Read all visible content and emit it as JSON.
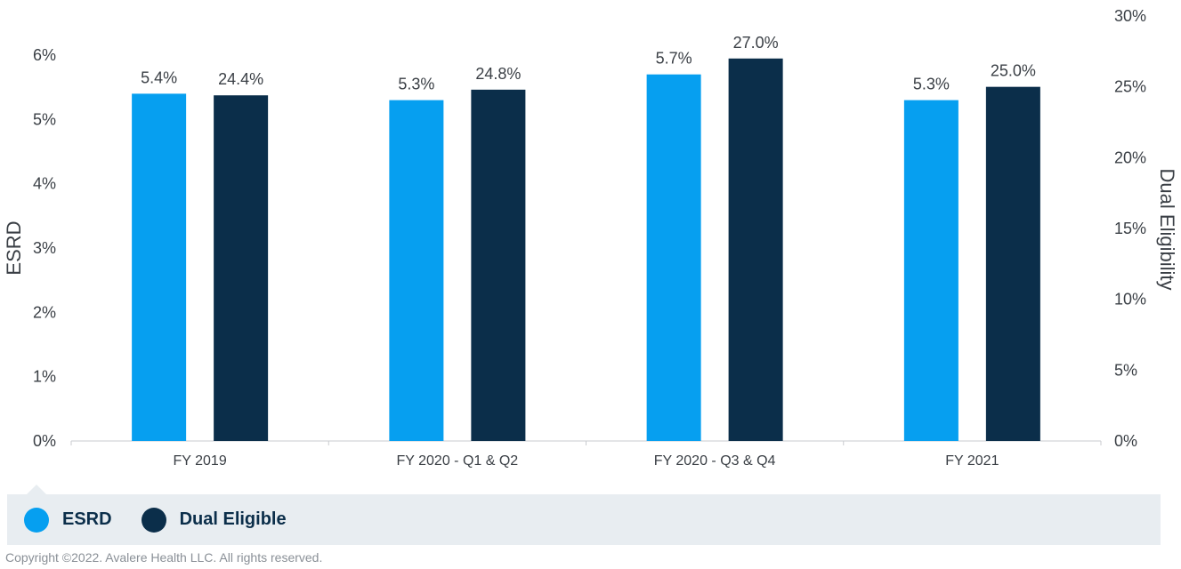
{
  "colors": {
    "esrd": "#069ff0",
    "dual_eligible": "#0b2e4a",
    "axis_text": "#3a3f45",
    "axis_line": "#c8cbcf",
    "legend_bg": "#e8edf1"
  },
  "legend": {
    "items": [
      {
        "label": "ESRD",
        "color": "#069ff0"
      },
      {
        "label": "Dual Eligible",
        "color": "#0b2e4a"
      }
    ]
  },
  "footer": {
    "copyright": "Copyright ©2022. Avalere Health LLC. All rights reserved."
  },
  "chart_data": {
    "type": "bar",
    "categories": [
      "FY 2019",
      "FY 2020 - Q1 & Q2",
      "FY 2020 - Q3 & Q4",
      "FY 2021"
    ],
    "series": [
      {
        "name": "ESRD",
        "axis": "left",
        "values": [
          5.4,
          5.3,
          5.7,
          5.3
        ],
        "labels": [
          "5.4%",
          "5.3%",
          "5.7%",
          "5.3%"
        ],
        "color": "#069ff0"
      },
      {
        "name": "Dual Eligible",
        "axis": "right",
        "values": [
          24.4,
          24.8,
          27.0,
          25.0
        ],
        "labels": [
          "24.4%",
          "24.8%",
          "27.0%",
          "25.0%"
        ],
        "color": "#0b2e4a"
      }
    ],
    "ylabel": "ESRD",
    "ylim": [
      0,
      6
    ],
    "yticks": [
      "0%",
      "1%",
      "2%",
      "3%",
      "4%",
      "5%",
      "6%"
    ],
    "y2label": "Dual Eligibility",
    "y2lim": [
      0,
      30
    ],
    "y2ticks": [
      "0%",
      "5%",
      "10%",
      "15%",
      "20%",
      "25%",
      "30%"
    ],
    "grid": false,
    "legend_position": "bottom-left"
  }
}
